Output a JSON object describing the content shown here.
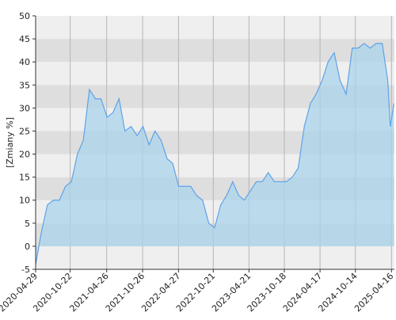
{
  "chart_data": {
    "type": "area",
    "y_label": "[Zmiany %]",
    "x": [
      "2020-04-29",
      "2020-05-28",
      "2020-06-28",
      "2020-07-28",
      "2020-08-28",
      "2020-09-28",
      "2020-10-28",
      "2020-11-28",
      "2020-12-28",
      "2021-01-28",
      "2021-02-28",
      "2021-03-28",
      "2021-04-28",
      "2021-05-28",
      "2021-06-28",
      "2021-07-28",
      "2021-08-28",
      "2021-09-28",
      "2021-10-28",
      "2021-11-28",
      "2021-12-28",
      "2022-01-28",
      "2022-02-28",
      "2022-03-28",
      "2022-04-28",
      "2022-05-28",
      "2022-06-28",
      "2022-07-28",
      "2022-08-28",
      "2022-09-28",
      "2022-10-28",
      "2022-11-28",
      "2022-12-28",
      "2023-01-28",
      "2023-02-28",
      "2023-03-28",
      "2023-04-28",
      "2023-05-28",
      "2023-06-28",
      "2023-07-28",
      "2023-08-28",
      "2023-09-28",
      "2023-10-28",
      "2023-11-28",
      "2023-12-28",
      "2024-01-28",
      "2024-02-28",
      "2024-03-28",
      "2024-04-28",
      "2024-05-28",
      "2024-06-28",
      "2024-07-28",
      "2024-08-28",
      "2024-09-28",
      "2024-10-28",
      "2024-11-28",
      "2024-12-28",
      "2025-01-28",
      "2025-02-28",
      "2025-03-28",
      "2025-04-10",
      "2025-04-28"
    ],
    "values": [
      -4,
      3,
      9,
      10,
      10,
      13,
      14,
      20,
      23,
      34,
      32,
      32,
      28,
      29,
      32,
      25,
      26,
      24,
      26,
      22,
      25,
      23,
      19,
      18,
      13,
      13,
      13,
      11,
      10,
      5,
      4,
      9,
      11,
      14,
      11,
      10,
      12,
      14,
      14,
      16,
      14,
      14,
      14,
      15,
      17,
      26,
      31,
      33,
      36,
      40,
      42,
      36,
      33,
      43,
      43,
      44,
      43,
      44,
      44,
      36,
      26,
      31
    ],
    "xlim": [
      "2020-04-29",
      "2025-05-01"
    ],
    "xticks": [
      "2020-04-29",
      "2020-10-22",
      "2021-04-26",
      "2021-10-26",
      "2022-04-27",
      "2022-10-21",
      "2023-04-21",
      "2023-10-18",
      "2024-04-17",
      "2024-10-14",
      "2025-04-16"
    ],
    "ylim": [
      -5,
      50
    ],
    "yticks": [
      -5,
      0,
      5,
      10,
      15,
      20,
      25,
      30,
      35,
      40,
      45,
      50
    ],
    "grid": true,
    "color": "#5ea2e8",
    "fill_color": "#a9d4ec",
    "band_colors": [
      "#efefef",
      "#dedede"
    ]
  }
}
